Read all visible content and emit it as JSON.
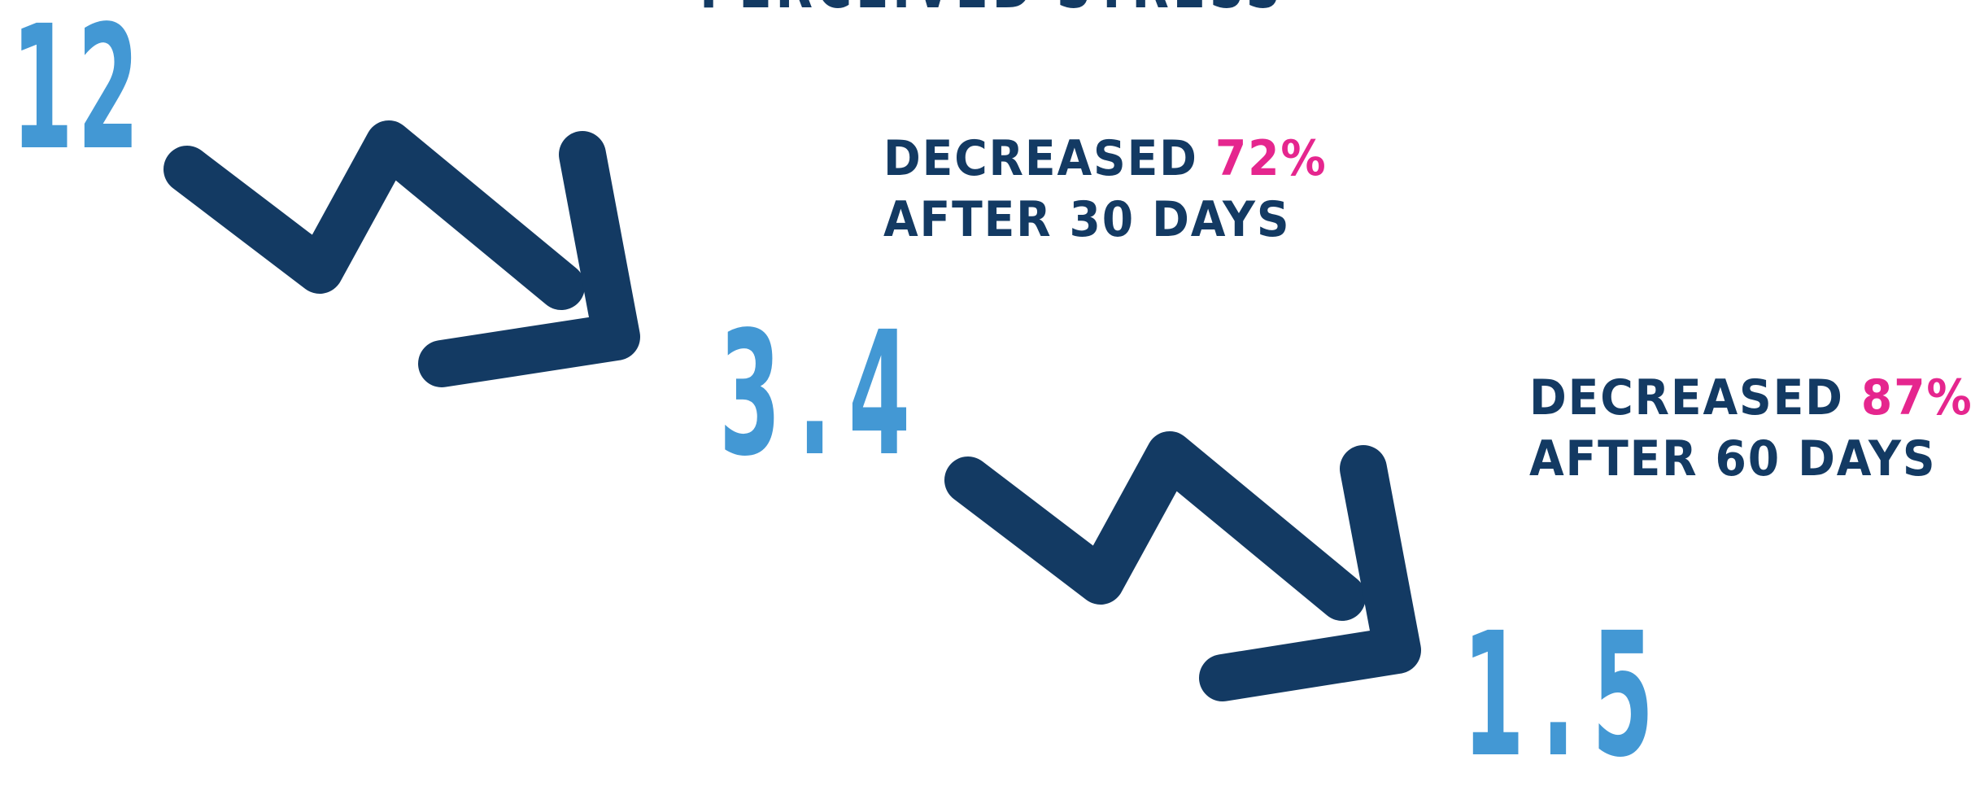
{
  "title": "PERCEIVED STRESS",
  "values": {
    "initial": "12",
    "after_30": "3.4",
    "after_60": "1.5"
  },
  "captions": [
    {
      "prefix": "DECREASED ",
      "percent": "72%",
      "line2": "AFTER 30 DAYS"
    },
    {
      "prefix": "DECREASED ",
      "percent": "87%",
      "line2": "AFTER 60 DAYS"
    }
  ],
  "icons": [
    "trend-down-arrow-icon",
    "trend-down-arrow-icon"
  ],
  "colors": {
    "navy": "#133a63",
    "blue": "#4398d4",
    "pink": "#e5268e",
    "background": "#ffffff"
  }
}
